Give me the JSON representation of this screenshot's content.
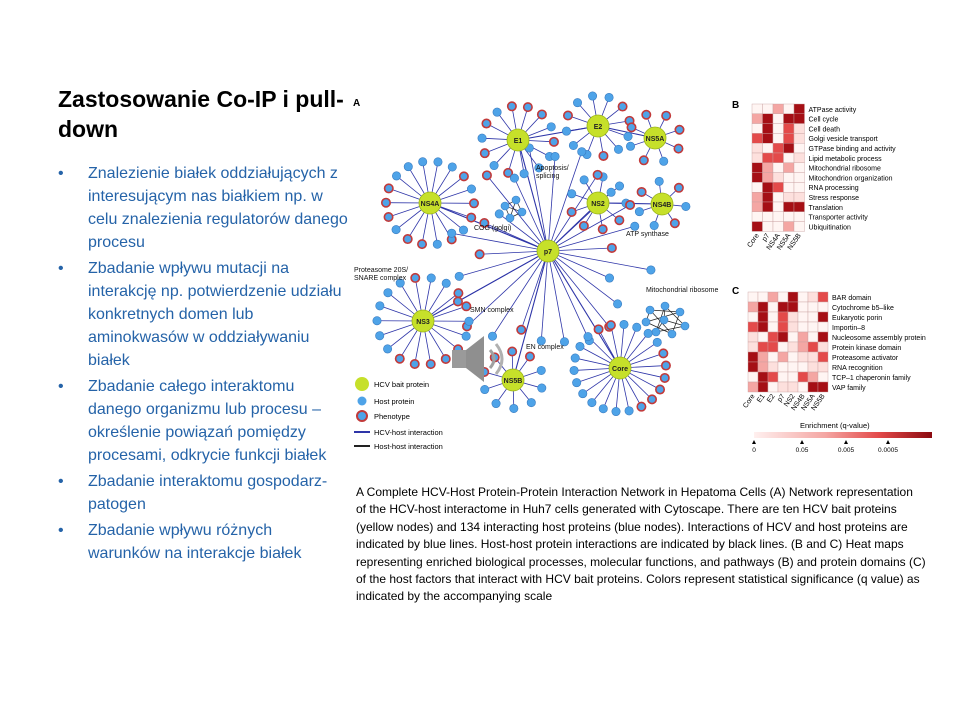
{
  "slide": {
    "title": "Zastosowanie Co-IP i pull-down",
    "bullets": [
      "Znalezienie białek oddziałujących z interesującym nas białkiem np. w celu znalezienia regulatorów danego procesu",
      "Zbadanie wpływu mutacji na interakcję np. potwierdzenie udziału konkretnych domen lub aminokwasów w oddziaływaniu białek",
      "Zbadanie całego interaktomu danego organizmu lub procesu – określenie powiązań pomiędzy procesami, odkrycie funkcji białek",
      "Zbadanie interaktomu gospodarz-patogen",
      "Zbadanie wpływu różnych warunków na interakcje białek"
    ],
    "caption": "A Complete HCV-Host Protein-Protein Interaction Network in Hepatoma Cells (A) Network representation of the HCV-host interactome in Huh7 cells generated with Cytoscape. There are ten HCV bait proteins (yellow nodes) and 134 interacting host proteins (blue nodes). Interactions of HCV and host proteins are indicated by blue lines. Host-host protein interactions are indicated by black lines. (B and C) Heat maps representing enriched biological processes, molecular functions, and pathways (B) and protein domains (C) of the host factors that interact with HCV bait proteins. Colors represent statistical significance (q value) as indicated by the accompanying scale"
  },
  "figure": {
    "panel_a": "A",
    "panel_b": "B",
    "panel_c": "C",
    "baits": [
      "E1",
      "E2",
      "NS5A",
      "NS4A",
      "NS2",
      "NS4B",
      "p7",
      "NS3",
      "Core",
      "NS5B"
    ],
    "groups": [
      "Apoptosis/ splicing",
      "COG (golgi)",
      "ATP synthase",
      "Proteasome 20S/ SNARE complex",
      "Mitochondrial ribosome",
      "SMN complex",
      "EN complex"
    ],
    "legend": {
      "bait": "HCV bait protein",
      "host": "Host protein",
      "phenotype": "Phenotype",
      "hcv_host": "HCV-host interaction",
      "host_host": "Host-host interaction"
    },
    "heatmap_b": {
      "rows": [
        "ATPase activity",
        "Cell cycle",
        "Cell death",
        "Golgi vesicle transport",
        "GTPase binding and activity",
        "Lipid metabolic process",
        "Mitochondrial ribosome",
        "Mitochondrion organization",
        "RNA processing",
        "Stress response",
        "Translation",
        "Transporter activity",
        "Ubiquitination"
      ],
      "cols": [
        "Core",
        "p7",
        "NS4A",
        "NS5A",
        "NS5B"
      ]
    },
    "heatmap_c": {
      "rows": [
        "BAR domain",
        "Cytochrome b5–like",
        "Eukaryotic porin",
        "Importin–8",
        "Nucleosome assembly protein",
        "Protein kinase domain",
        "Proteasome activator",
        "RNA recognition",
        "TCP–1 chaperonin family",
        "VAP family"
      ],
      "cols": [
        "Core",
        "E1",
        "E2",
        "p7",
        "NS2",
        "NS4B",
        "NS5A",
        "NS5B"
      ]
    },
    "enrichment": {
      "label": "Enrichment (q-value)",
      "ticks": [
        "0",
        "0.05",
        "0.005",
        "0.0005"
      ]
    },
    "colors": {
      "bait": "#c6e02a",
      "host": "#4ea3e8",
      "phenotype_ring": "#c23a3a",
      "hcv_line": "#2e35a8",
      "host_line": "#222222",
      "heat_high": "#a50f15",
      "heat_low": "#fde0dd"
    }
  }
}
